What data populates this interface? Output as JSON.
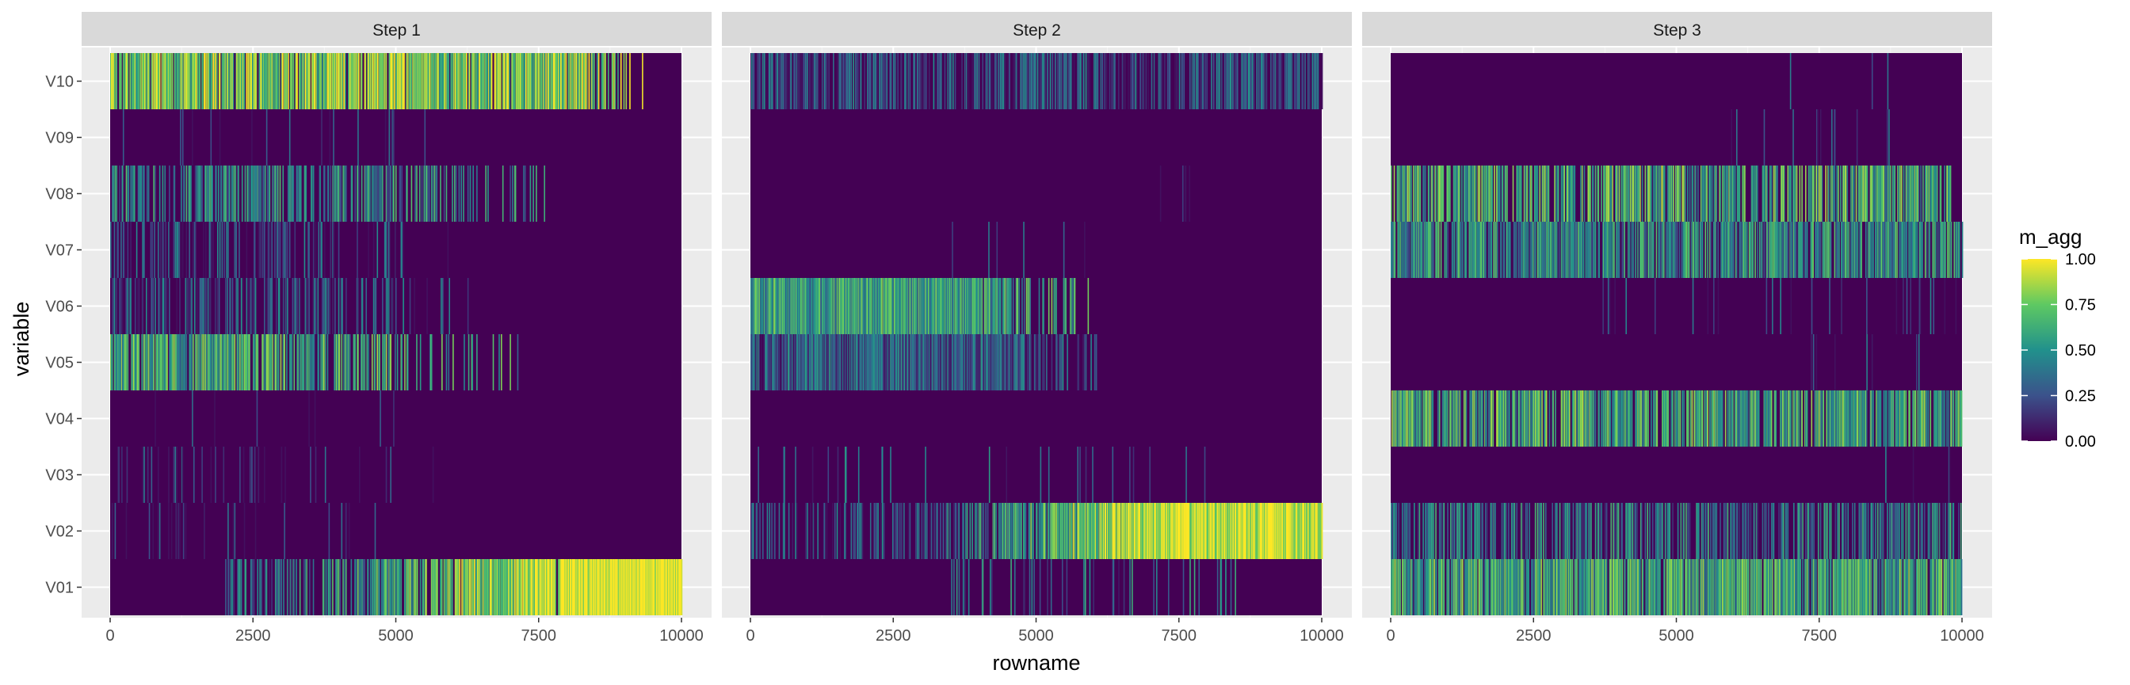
{
  "chart_data": {
    "type": "heatmap",
    "xlabel": "rowname",
    "ylabel": "variable",
    "facets": [
      "Step 1",
      "Step 2",
      "Step 3"
    ],
    "variables": [
      "V10",
      "V09",
      "V08",
      "V07",
      "V06",
      "V05",
      "V04",
      "V03",
      "V02",
      "V01"
    ],
    "x_range": [
      0,
      10000
    ],
    "x_ticks": [
      "0",
      "2500",
      "5000",
      "7500",
      "10000"
    ],
    "colorscale": "viridis",
    "legend": {
      "title": "m_agg",
      "ticks": [
        "1.00",
        "0.75",
        "0.50",
        "0.25",
        "0.00"
      ],
      "range": [
        0,
        1
      ],
      "position": "right"
    },
    "panel_background": "#ebebeb",
    "strip_background": "#d9d9d9",
    "grid": true,
    "bands": {
      "Step 1": {
        "V10": {
          "start": 0,
          "end": 10000,
          "density": 0.75,
          "level": 0.78,
          "fade_start": 8000,
          "fade_end": 9400
        },
        "V09": {
          "start": 0,
          "end": 5500,
          "density": 0.04,
          "level": 0.15
        },
        "V08": {
          "start": 0,
          "end": 8200,
          "density": 0.45,
          "level": 0.45,
          "fade_start": 5000,
          "fade_end": 8200
        },
        "V07": {
          "start": 0,
          "end": 6500,
          "density": 0.3,
          "level": 0.22,
          "fade_start": 2500,
          "fade_end": 6500
        },
        "V06": {
          "start": 0,
          "end": 6800,
          "density": 0.4,
          "level": 0.24,
          "fade_start": 3000,
          "fade_end": 6800
        },
        "V05": {
          "start": 0,
          "end": 7500,
          "density": 0.8,
          "level": 0.6,
          "fade_start": 500,
          "fade_end": 7500
        },
        "V04": {
          "start": 0,
          "end": 5000,
          "density": 0.02,
          "level": 0.1
        },
        "V03": {
          "start": 0,
          "end": 6000,
          "density": 0.1,
          "level": 0.15,
          "fade_start": 3000,
          "fade_end": 6000
        },
        "V02": {
          "start": 0,
          "end": 5000,
          "density": 0.12,
          "level": 0.15,
          "fade_start": 2000,
          "fade_end": 5000
        },
        "V01": {
          "start": 2000,
          "end": 10000,
          "density": 0.8,
          "level": 0.65,
          "grow_start": 2500,
          "grow_end": 8500
        }
      },
      "Step 2": {
        "V10": {
          "start": 0,
          "end": 10000,
          "density": 0.55,
          "level": 0.25
        },
        "V09": {
          "start": 0,
          "end": 5000,
          "density": 0.0,
          "level": 0.0
        },
        "V08": {
          "start": 6700,
          "end": 8300,
          "density": 0.02,
          "level": 0.15
        },
        "V07": {
          "start": 3500,
          "end": 6000,
          "density": 0.02,
          "level": 0.15
        },
        "V06": {
          "start": 0,
          "end": 6200,
          "density": 0.95,
          "level": 0.55,
          "fade_start": 3600,
          "fade_end": 6200
        },
        "V05": {
          "start": 0,
          "end": 6200,
          "density": 0.9,
          "level": 0.3,
          "fade_start": 4000,
          "fade_end": 6200
        },
        "V04": {
          "start": 0,
          "end": 5000,
          "density": 0.0,
          "level": 0.0
        },
        "V03": {
          "start": 0,
          "end": 8000,
          "density": 0.03,
          "level": 0.3
        },
        "V02": {
          "start": 0,
          "end": 10000,
          "density": 0.9,
          "level": 0.55,
          "grow_start": 3000,
          "grow_end": 7000
        },
        "V01": {
          "start": 3500,
          "end": 8500,
          "density": 0.12,
          "level": 0.35
        }
      },
      "Step 3": {
        "V10": {
          "start": 6000,
          "end": 9000,
          "density": 0.01,
          "level": 0.2
        },
        "V09": {
          "start": 5800,
          "end": 9300,
          "density": 0.03,
          "level": 0.2
        },
        "V08": {
          "start": 0,
          "end": 9800,
          "density": 0.55,
          "level": 0.62
        },
        "V07": {
          "start": 0,
          "end": 10000,
          "density": 0.6,
          "level": 0.5
        },
        "V06": {
          "start": 3500,
          "end": 10000,
          "density": 0.05,
          "level": 0.2
        },
        "V05": {
          "start": 7000,
          "end": 10000,
          "density": 0.06,
          "level": 0.2
        },
        "V04": {
          "start": 0,
          "end": 10000,
          "density": 0.6,
          "level": 0.6
        },
        "V03": {
          "start": 8500,
          "end": 10000,
          "density": 0.03,
          "level": 0.2
        },
        "V02": {
          "start": 0,
          "end": 10000,
          "density": 0.45,
          "level": 0.4
        },
        "V01": {
          "start": 0,
          "end": 10000,
          "density": 0.75,
          "level": 0.6
        }
      }
    }
  }
}
